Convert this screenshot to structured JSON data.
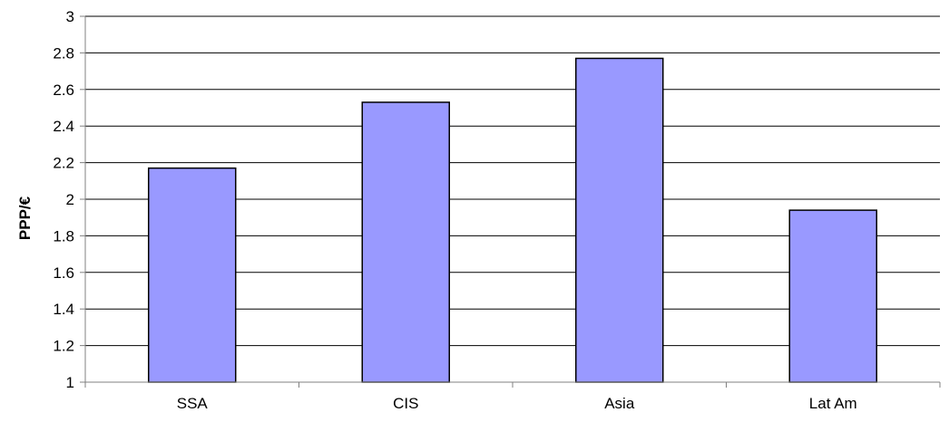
{
  "chart_data": {
    "type": "bar",
    "title": "",
    "xlabel": "",
    "ylabel": "PPP/€",
    "categories": [
      "SSA",
      "CIS",
      "Asia",
      "Lat Am"
    ],
    "values": [
      2.17,
      2.53,
      2.77,
      1.94
    ],
    "ylim": [
      1,
      3
    ],
    "yticks": [
      "1",
      "1.2",
      "1.4",
      "1.6",
      "1.8",
      "2",
      "2.2",
      "2.4",
      "2.6",
      "2.8",
      "3"
    ],
    "grid": true,
    "legend": "none",
    "colors": {
      "bar_fill": "#9999ff",
      "bar_stroke": "#000000",
      "grid": "#000000",
      "axis": "#808080"
    }
  }
}
